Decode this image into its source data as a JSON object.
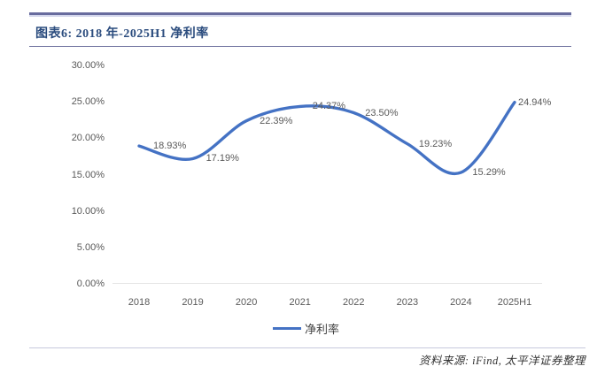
{
  "header": {
    "title": "图表6: 2018 年-2025H1 净利率"
  },
  "footer": {
    "source": "资料来源: iFind, 太平洋证券整理"
  },
  "colors": {
    "line": "#4472C4",
    "title_text": "#2B4C7E",
    "axis_text": "#595959",
    "rule_dark": "#686C9E",
    "rule_light": "#C6C9DD"
  },
  "chart_data": {
    "type": "line",
    "title": "图表6: 2018 年-2025H1 净利率",
    "categories": [
      "2018",
      "2019",
      "2020",
      "2021",
      "2022",
      "2023",
      "2024",
      "2025H1"
    ],
    "series": [
      {
        "name": "净利率",
        "values": [
          18.93,
          17.19,
          22.39,
          24.37,
          23.5,
          19.23,
          15.29,
          24.94
        ]
      }
    ],
    "data_labels": [
      "18.93%",
      "17.19%",
      "22.39%",
      "24.37%",
      "23.50%",
      "19.23%",
      "15.29%",
      "24.94%"
    ],
    "y_ticks": [
      "30.00%",
      "25.00%",
      "20.00%",
      "15.00%",
      "10.00%",
      "5.00%",
      "0.00%"
    ],
    "ylim": [
      0,
      30
    ],
    "unit": "%",
    "grid": false,
    "smooth": true,
    "legend_position": "bottom"
  }
}
